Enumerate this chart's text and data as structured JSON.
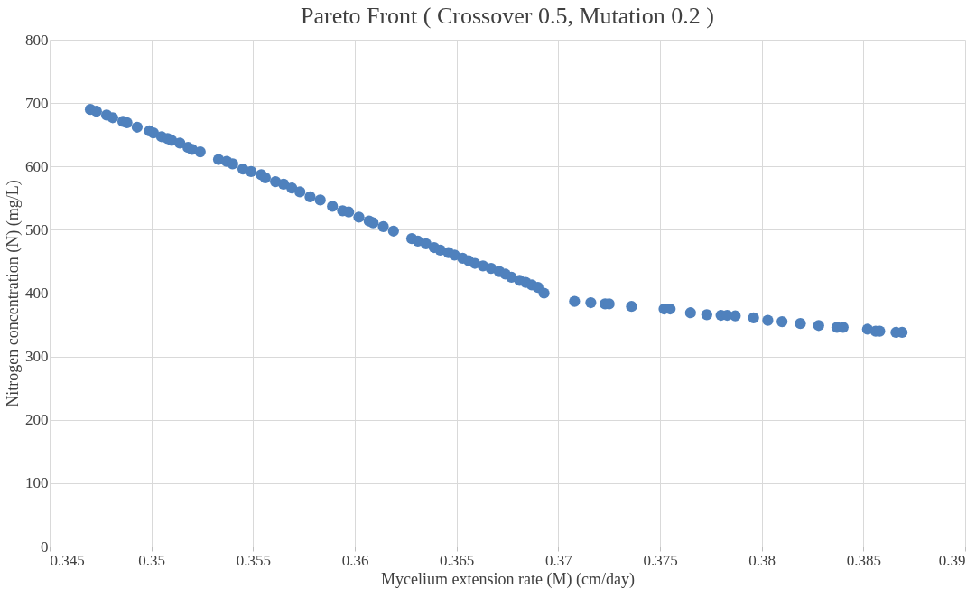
{
  "chart_data": {
    "type": "scatter",
    "title": "Pareto Front ( Crossover 0.5, Mutation 0.2 )",
    "xlabel": "Mycelium extension rate (M) (cm/day)",
    "ylabel": "Nitrogen concentration (N) (mg/L)",
    "x": [
      0.347,
      0.3473,
      0.3478,
      0.3481,
      0.3486,
      0.3488,
      0.3493,
      0.3499,
      0.3501,
      0.3505,
      0.3508,
      0.351,
      0.3514,
      0.3518,
      0.352,
      0.3524,
      0.3533,
      0.3537,
      0.354,
      0.3545,
      0.3549,
      0.3554,
      0.3556,
      0.3561,
      0.3565,
      0.3569,
      0.3573,
      0.3578,
      0.3583,
      0.3589,
      0.3594,
      0.3597,
      0.3602,
      0.3607,
      0.3609,
      0.3614,
      0.3619,
      0.3628,
      0.3631,
      0.3635,
      0.3639,
      0.3642,
      0.3646,
      0.3649,
      0.3653,
      0.3656,
      0.3659,
      0.3663,
      0.3667,
      0.3671,
      0.3674,
      0.3677,
      0.3681,
      0.3684,
      0.3687,
      0.369,
      0.3693,
      0.3708,
      0.3716,
      0.3723,
      0.3725,
      0.3736,
      0.3752,
      0.3755,
      0.3765,
      0.3773,
      0.378,
      0.3783,
      0.3787,
      0.3796,
      0.3803,
      0.381,
      0.3819,
      0.3828,
      0.3837,
      0.384,
      0.3852,
      0.3856,
      0.3858,
      0.3866,
      0.3869
    ],
    "values": [
      690,
      687,
      681,
      677,
      671,
      669,
      662,
      656,
      653,
      647,
      644,
      641,
      637,
      630,
      627,
      623,
      611,
      608,
      604,
      596,
      592,
      587,
      582,
      576,
      572,
      566,
      560,
      552,
      547,
      537,
      530,
      528,
      520,
      514,
      511,
      505,
      498,
      486,
      482,
      478,
      472,
      468,
      464,
      460,
      455,
      451,
      447,
      443,
      439,
      434,
      430,
      425,
      420,
      417,
      413,
      409,
      400,
      387,
      385,
      383,
      383,
      379,
      375,
      375,
      369,
      366,
      365,
      365,
      364,
      361,
      357,
      355,
      352,
      349,
      346,
      346,
      343,
      340,
      340,
      338,
      338
    ],
    "color": "#4f81bd",
    "marker": "circle",
    "grid": true,
    "xlim": [
      0.345,
      0.39
    ],
    "xticks": [
      0.345,
      0.35,
      0.355,
      0.36,
      0.365,
      0.37,
      0.375,
      0.38,
      0.385,
      0.39
    ],
    "ylim": [
      0,
      800
    ],
    "yticks": [
      0,
      100,
      200,
      300,
      400,
      500,
      600,
      700,
      800
    ]
  }
}
